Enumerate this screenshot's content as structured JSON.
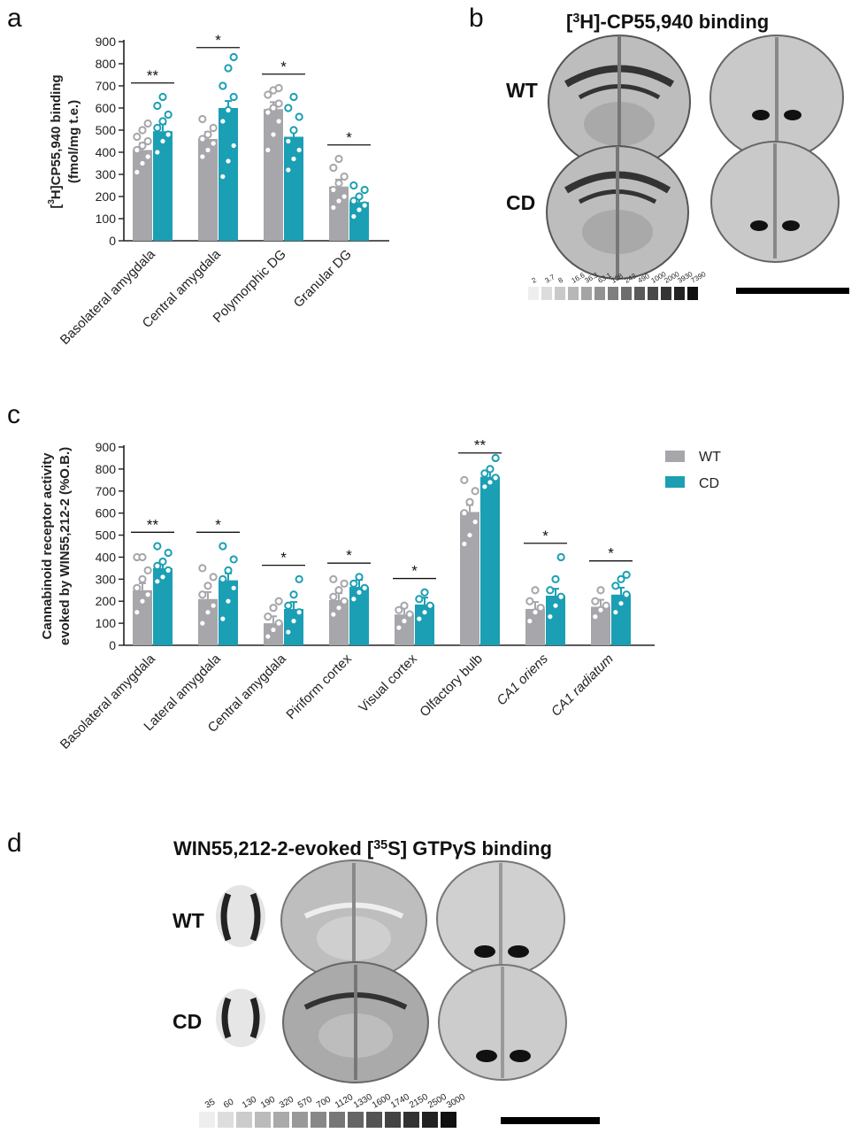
{
  "colors": {
    "wt": "#a6a6ab",
    "cd": "#1b9fb4",
    "axis": "#222222"
  },
  "panel_a": {
    "letter": "a",
    "ylabel_line1": "[3H]CP55,940 binding",
    "ylabel_line2": "(fmol/mg t.e.)",
    "yticks": [
      "0",
      "100",
      "200",
      "300",
      "400",
      "500",
      "600",
      "700",
      "800",
      "900"
    ]
  },
  "panel_b": {
    "letter": "b",
    "title": "[3H]-CP55,940 binding",
    "wt_label": "WT",
    "cd_label": "CD",
    "standards": [
      "2",
      "3.7",
      "8",
      "16.6",
      "36.3",
      "63.1",
      "138",
      "243",
      "490",
      "1000",
      "2000",
      "3930",
      "7390"
    ]
  },
  "panel_c": {
    "letter": "c",
    "ylabel_line1": "Cannabinoid receptor activity",
    "ylabel_line2": "evoked by WIN55,212-2 (%O.B.)",
    "yticks": [
      "0",
      "100",
      "200",
      "300",
      "400",
      "500",
      "600",
      "700",
      "800",
      "900"
    ],
    "legend": [
      {
        "label": "WT"
      },
      {
        "label": "CD"
      }
    ]
  },
  "panel_d": {
    "letter": "d",
    "title": "WIN55,212-2-evoked [35S] GTPγS binding",
    "wt_label": "WT",
    "cd_label": "CD",
    "standards": [
      "35",
      "60",
      "130",
      "190",
      "320",
      "570",
      "700",
      "1120",
      "1330",
      "1600",
      "1740",
      "2150",
      "2500",
      "3000"
    ]
  },
  "chart_data": [
    {
      "panel": "a",
      "type": "bar",
      "ylabel": "[3H]CP55,940 binding (fmol/mg t.e.)",
      "ylim": [
        0,
        900
      ],
      "categories": [
        "Basolateral amygdala",
        "Central amygdala",
        "Polymorphic DG",
        "Granular DG"
      ],
      "significance": [
        "**",
        "*",
        "*",
        "*"
      ],
      "series": [
        {
          "name": "WT",
          "values": [
            410,
            460,
            595,
            245
          ]
        },
        {
          "name": "CD",
          "values": [
            495,
            600,
            470,
            175
          ]
        }
      ],
      "points": {
        "WT": [
          [
            310,
            350,
            380,
            410,
            430,
            450,
            470,
            500,
            530
          ],
          [
            380,
            410,
            440,
            460,
            480,
            510,
            550
          ],
          [
            410,
            480,
            540,
            580,
            600,
            620,
            660,
            680,
            690
          ],
          [
            150,
            180,
            200,
            230,
            260,
            290,
            330,
            370
          ]
        ],
        "CD": [
          [
            400,
            450,
            480,
            510,
            540,
            570,
            610,
            650
          ],
          [
            290,
            360,
            430,
            540,
            590,
            650,
            700,
            780,
            830
          ],
          [
            320,
            370,
            410,
            450,
            500,
            560,
            600,
            650
          ],
          [
            110,
            140,
            160,
            180,
            200,
            230,
            250
          ]
        ]
      }
    },
    {
      "panel": "c",
      "type": "bar",
      "ylabel": "Cannabinoid receptor activity evoked by WIN55,212-2 (%O.B.)",
      "ylim": [
        0,
        900
      ],
      "categories": [
        "Basolateral amygdala",
        "Lateral amygdala",
        "Central amygdala",
        "Piriform cortex",
        "Visual cortex",
        "Olfactory bulb",
        "CA1 oriens",
        "CA1 radiatum"
      ],
      "significance": [
        "**",
        "*",
        "*",
        "*",
        "*",
        "**",
        "*",
        "*"
      ],
      "series": [
        {
          "name": "WT",
          "values": [
            250,
            210,
            100,
            205,
            140,
            605,
            165,
            175
          ]
        },
        {
          "name": "CD",
          "values": [
            350,
            295,
            165,
            265,
            185,
            765,
            225,
            230
          ]
        }
      ],
      "points": {
        "WT": [
          [
            150,
            200,
            230,
            260,
            300,
            340,
            400,
            400
          ],
          [
            100,
            150,
            180,
            230,
            270,
            310,
            350
          ],
          [
            40,
            70,
            100,
            130,
            170,
            200
          ],
          [
            140,
            170,
            200,
            220,
            250,
            280,
            300
          ],
          [
            80,
            110,
            140,
            160,
            180
          ],
          [
            460,
            500,
            560,
            600,
            650,
            700,
            750
          ],
          [
            110,
            150,
            170,
            200,
            250
          ],
          [
            130,
            160,
            180,
            200,
            250
          ]
        ],
        "CD": [
          [
            290,
            310,
            340,
            360,
            380,
            420,
            450
          ],
          [
            120,
            200,
            260,
            300,
            340,
            390,
            450
          ],
          [
            60,
            110,
            150,
            180,
            230,
            300
          ],
          [
            210,
            240,
            260,
            280,
            310
          ],
          [
            120,
            150,
            180,
            210,
            240
          ],
          [
            720,
            740,
            760,
            780,
            800,
            850
          ],
          [
            130,
            180,
            220,
            250,
            300,
            400
          ],
          [
            150,
            190,
            230,
            270,
            300,
            320
          ]
        ]
      }
    }
  ]
}
